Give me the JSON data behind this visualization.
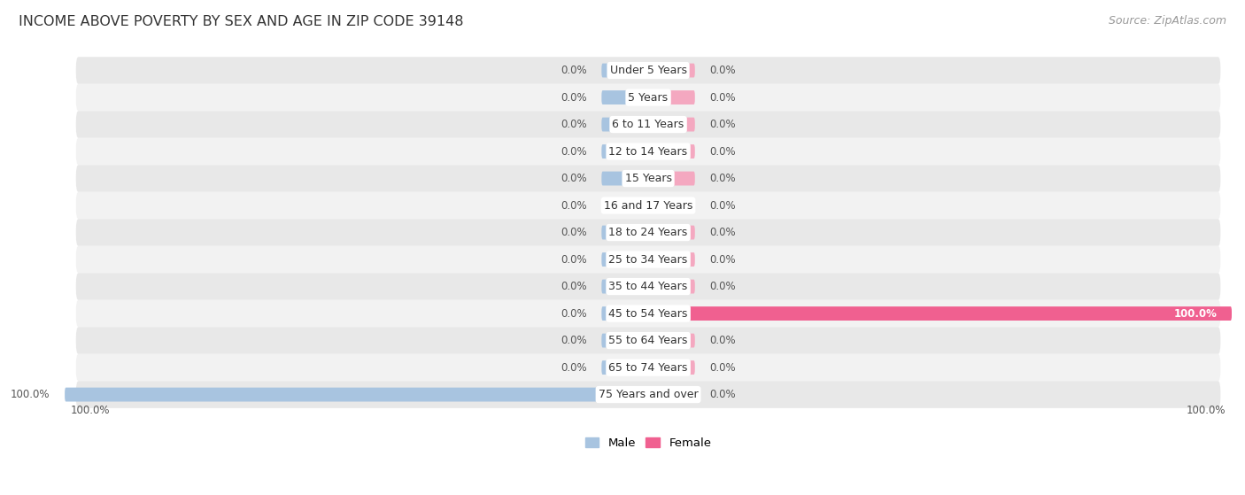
{
  "title": "INCOME ABOVE POVERTY BY SEX AND AGE IN ZIP CODE 39148",
  "source": "Source: ZipAtlas.com",
  "categories": [
    "Under 5 Years",
    "5 Years",
    "6 to 11 Years",
    "12 to 14 Years",
    "15 Years",
    "16 and 17 Years",
    "18 to 24 Years",
    "25 to 34 Years",
    "35 to 44 Years",
    "45 to 54 Years",
    "55 to 64 Years",
    "65 to 74 Years",
    "75 Years and over"
  ],
  "male_values": [
    0.0,
    0.0,
    0.0,
    0.0,
    0.0,
    0.0,
    0.0,
    0.0,
    0.0,
    0.0,
    0.0,
    0.0,
    100.0
  ],
  "female_values": [
    0.0,
    0.0,
    0.0,
    0.0,
    0.0,
    0.0,
    0.0,
    0.0,
    0.0,
    100.0,
    0.0,
    0.0,
    0.0
  ],
  "male_color": "#a8c4e0",
  "female_color": "#f4a8c0",
  "female_color_strong": "#f06090",
  "bg_color": "#ffffff",
  "row_color_light": "#f2f2f2",
  "row_color_dark": "#e8e8e8",
  "title_fontsize": 11.5,
  "label_fontsize": 9,
  "source_fontsize": 9,
  "legend_fontsize": 9.5,
  "value_fontsize": 8.5,
  "stub_size": 8.0,
  "xlim": 100
}
